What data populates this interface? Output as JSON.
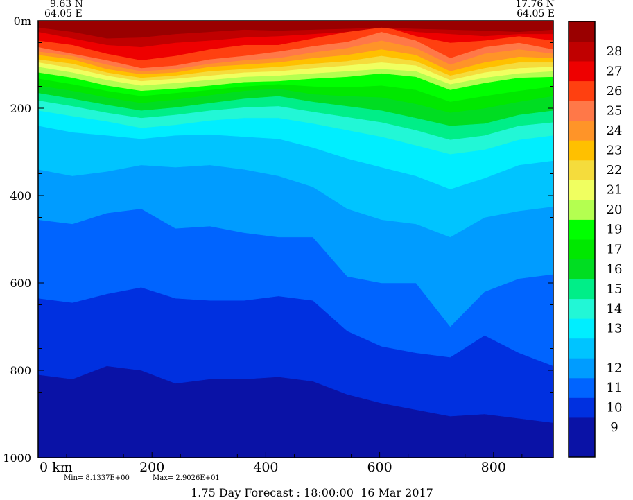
{
  "header": {
    "left_lat": "9.63 N",
    "left_lon": "64.05 E",
    "right_lat": "17.76 N",
    "right_lon": "64.05 E"
  },
  "footer": {
    "min_label": "Min= 8.1337E+00",
    "max_label": "Max= 2.9026E+01",
    "forecast": "1.75 Day Forecast : 18:00:00  16 Mar 2017"
  },
  "chart_data": {
    "type": "heatmap",
    "xlim": [
      0,
      905
    ],
    "ylim": [
      0,
      1000
    ],
    "y_inverted": true,
    "x_ticks": [
      {
        "value": 0,
        "label": "0 km"
      },
      {
        "value": 200,
        "label": "200"
      },
      {
        "value": 400,
        "label": "400"
      },
      {
        "value": 600,
        "label": "600"
      },
      {
        "value": 800,
        "label": "800"
      }
    ],
    "y_ticks": [
      {
        "value": 0,
        "label": "0m"
      },
      {
        "value": 200,
        "label": "200"
      },
      {
        "value": 400,
        "label": "400"
      },
      {
        "value": 600,
        "label": "600"
      },
      {
        "value": 800,
        "label": "800"
      },
      {
        "value": 1000,
        "label": "1000"
      }
    ],
    "colorbar": [
      {
        "label": "",
        "color": "#0a12a6"
      },
      {
        "label": "9",
        "color": "#0a12a6"
      },
      {
        "label": "10",
        "color": "#0030e0"
      },
      {
        "label": "11",
        "color": "#0064ff"
      },
      {
        "label": "12",
        "color": "#009cff"
      },
      {
        "label": "",
        "color": "#00c4ff"
      },
      {
        "label": "13",
        "color": "#00eeff"
      },
      {
        "label": "14",
        "color": "#22f7d6"
      },
      {
        "label": "15",
        "color": "#00ee88"
      },
      {
        "label": "16",
        "color": "#00dd22"
      },
      {
        "label": "17",
        "color": "#00e800"
      },
      {
        "label": "19",
        "color": "#00ff00"
      },
      {
        "label": "20",
        "color": "#b4ff50"
      },
      {
        "label": "21",
        "color": "#f0ff60"
      },
      {
        "label": "22",
        "color": "#f5dc3c"
      },
      {
        "label": "23",
        "color": "#ffc000"
      },
      {
        "label": "24",
        "color": "#ff9428"
      },
      {
        "label": "25",
        "color": "#ff7848"
      },
      {
        "label": "26",
        "color": "#ff4010"
      },
      {
        "label": "27",
        "color": "#ee0000"
      },
      {
        "label": "28",
        "color": "#c00000"
      },
      {
        "label": "",
        "color": "#9a0000"
      }
    ],
    "isotherms": [
      {
        "temp": 28,
        "color": "#9a0000",
        "depth": [
          15,
          25,
          40,
          38,
          30,
          25,
          20,
          22,
          20,
          18,
          15,
          18,
          20,
          22,
          25,
          20
        ]
      },
      {
        "temp": 27,
        "color": "#c00000",
        "depth": [
          25,
          40,
          55,
          60,
          50,
          45,
          38,
          35,
          30,
          25,
          15,
          25,
          30,
          35,
          30,
          30
        ]
      },
      {
        "temp": 26,
        "color": "#ee0000",
        "depth": [
          45,
          55,
          75,
          90,
          80,
          65,
          55,
          55,
          40,
          25,
          10,
          35,
          50,
          45,
          35,
          45
        ]
      },
      {
        "temp": 25,
        "color": "#ff4010",
        "depth": [
          60,
          75,
          90,
          108,
          102,
          88,
          80,
          70,
          58,
          48,
          25,
          45,
          85,
          60,
          50,
          65
        ]
      },
      {
        "temp": 24,
        "color": "#ff7848",
        "depth": [
          70,
          80,
          100,
          115,
          110,
          98,
          90,
          85,
          72,
          62,
          45,
          62,
          100,
          75,
          65,
          75
        ]
      },
      {
        "temp": 23,
        "color": "#ff9428",
        "depth": [
          78,
          88,
          110,
          122,
          118,
          105,
          100,
          95,
          85,
          78,
          65,
          78,
          115,
          95,
          82,
          85
        ]
      },
      {
        "temp": 22,
        "color": "#ffc000",
        "depth": [
          88,
          98,
          118,
          130,
          125,
          115,
          110,
          105,
          98,
          92,
          80,
          92,
          125,
          108,
          95,
          95
        ]
      },
      {
        "temp": 21,
        "color": "#f5dc3c",
        "depth": [
          95,
          108,
          125,
          138,
          132,
          125,
          118,
          115,
          108,
          102,
          95,
          102,
          135,
          118,
          108,
          105
        ]
      },
      {
        "temp": 20,
        "color": "#f0ff60",
        "depth": [
          105,
          118,
          135,
          148,
          142,
          135,
          128,
          125,
          120,
          115,
          110,
          115,
          145,
          130,
          120,
          115
        ]
      },
      {
        "temp": 19,
        "color": "#b4ff50",
        "depth": [
          118,
          130,
          148,
          160,
          155,
          148,
          140,
          138,
          132,
          128,
          120,
          128,
          158,
          142,
          130,
          128
        ]
      },
      {
        "temp": 17,
        "color": "#00ff00",
        "depth": [
          132,
          145,
          160,
          172,
          165,
          158,
          150,
          145,
          150,
          152,
          148,
          158,
          185,
          172,
          160,
          150
        ]
      },
      {
        "temp": 16,
        "color": "#00e800",
        "depth": [
          148,
          160,
          175,
          188,
          180,
          170,
          160,
          155,
          168,
          172,
          175,
          190,
          210,
          200,
          185,
          172
        ]
      },
      {
        "temp": 15,
        "color": "#00dd22",
        "depth": [
          165,
          178,
          192,
          205,
          198,
          188,
          178,
          172,
          185,
          195,
          205,
          222,
          240,
          235,
          215,
          205
        ]
      },
      {
        "temp": 14,
        "color": "#00ee88",
        "depth": [
          182,
          195,
          210,
          222,
          215,
          205,
          198,
          195,
          208,
          220,
          232,
          250,
          272,
          262,
          240,
          232
        ]
      },
      {
        "temp": 13,
        "color": "#22f7d6",
        "depth": [
          205,
          218,
          230,
          245,
          238,
          228,
          222,
          222,
          235,
          250,
          265,
          285,
          305,
          295,
          272,
          262
        ]
      },
      {
        "temp": 12,
        "color": "#00eeff",
        "depth": [
          240,
          255,
          262,
          270,
          262,
          260,
          265,
          270,
          290,
          315,
          335,
          355,
          385,
          360,
          330,
          320
        ]
      },
      {
        "temp": 11,
        "color": "#00c4ff",
        "depth": [
          340,
          355,
          345,
          330,
          335,
          330,
          340,
          355,
          380,
          430,
          455,
          465,
          495,
          450,
          435,
          425
        ]
      },
      {
        "temp": 10,
        "color": "#009cff",
        "depth": [
          455,
          465,
          440,
          430,
          475,
          470,
          485,
          495,
          495,
          585,
          600,
          600,
          700,
          620,
          590,
          580
        ]
      },
      {
        "temp": 9,
        "color": "#0064ff",
        "depth": [
          635,
          645,
          625,
          610,
          635,
          640,
          640,
          630,
          640,
          710,
          745,
          760,
          770,
          720,
          760,
          790
        ]
      },
      {
        "temp": 8,
        "color": "#0030e0",
        "depth": [
          810,
          820,
          790,
          800,
          830,
          820,
          820,
          815,
          825,
          855,
          875,
          890,
          905,
          900,
          910,
          920
        ]
      }
    ]
  }
}
